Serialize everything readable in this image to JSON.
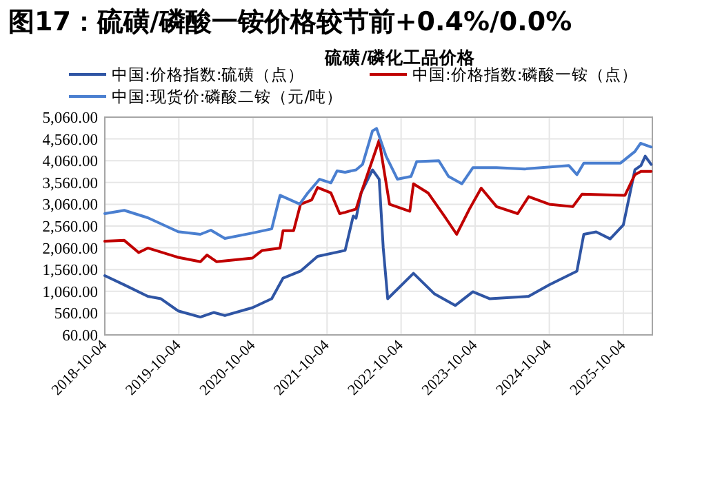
{
  "chart_data": {
    "type": "line",
    "title": "**图17：硫磺/磷酸一铵价格较节前+0.4%/0.0%**",
    "subtitle": "**硫磺/磷化工品价格**",
    "xlim": [
      "2018-10-04",
      "2026-02-24"
    ],
    "xticks": [
      "2018-10-04",
      "2019-10-04",
      "2020-10-04",
      "2021-10-04",
      "2022-10-04",
      "2023-10-04",
      "2024-10-04",
      "2025-10-04"
    ],
    "ylim": [
      60,
      5060
    ],
    "yticks": [
      {
        "value": 60,
        "label": "60.00"
      },
      {
        "value": 560,
        "label": "560.00"
      },
      {
        "value": 1060,
        "label": "1,060.00"
      },
      {
        "value": 1560,
        "label": "1,560.00"
      },
      {
        "value": 2060,
        "label": "2,060.00"
      },
      {
        "value": 2560,
        "label": "2,560.00"
      },
      {
        "value": 3060,
        "label": "3,060.00"
      },
      {
        "value": 3560,
        "label": "3,560.00"
      },
      {
        "value": 4060,
        "label": "4,060.00"
      },
      {
        "value": 4560,
        "label": "4,560.00"
      },
      {
        "value": 5060,
        "label": "5,060.00"
      }
    ],
    "grid": true,
    "legend": "top",
    "line_style": "solid",
    "series": [
      {
        "name": "中国:价格指数:硫磺（点）",
        "color": "#2f55a4",
        "x": [
          "2018-10-04",
          "2019-01-08",
          "2019-05-04",
          "2019-07-08",
          "2019-10-01",
          "2020-01-18",
          "2020-03-25",
          "2020-05-18",
          "2020-10-01",
          "2021-01-04",
          "2021-03-01",
          "2021-05-26",
          "2021-08-18",
          "2022-01-01",
          "2022-02-10",
          "2022-02-24",
          "2022-03-21",
          "2022-05-16",
          "2022-06-18",
          "2022-07-08",
          "2022-07-30",
          "2022-12-04",
          "2023-03-18",
          "2023-06-28",
          "2023-09-23",
          "2023-12-16",
          "2024-06-24",
          "2024-10-04",
          "2025-02-17",
          "2025-03-23",
          "2025-05-23",
          "2025-07-31",
          "2025-10-04",
          "2025-11-30",
          "2025-12-30",
          "2026-01-20",
          "2026-02-18"
        ],
        "values": [
          1420,
          1210,
          945,
          890,
          610,
          470,
          575,
          505,
          685,
          890,
          1365,
          1525,
          1865,
          2000,
          2790,
          2740,
          3320,
          3850,
          3635,
          2055,
          890,
          1475,
          1000,
          735,
          1050,
          890,
          945,
          1210,
          1525,
          2370,
          2425,
          2265,
          2585,
          3850,
          3950,
          4165,
          3975
        ]
      },
      {
        "name": "中国:价格指数:磷酸一铵（点）",
        "color": "#c00000",
        "x": [
          "2018-10-04",
          "2019-01-08",
          "2019-03-20",
          "2019-05-04",
          "2019-10-01",
          "2020-01-18",
          "2020-02-20",
          "2020-04-08",
          "2020-10-01",
          "2020-11-18",
          "2021-02-14",
          "2021-03-01",
          "2021-04-22",
          "2021-05-26",
          "2021-07-20",
          "2021-08-18",
          "2021-10-23",
          "2021-12-05",
          "2022-01-01",
          "2022-02-24",
          "2022-03-21",
          "2022-06-18",
          "2022-08-08",
          "2022-11-16",
          "2022-12-04",
          "2023-02-14",
          "2023-05-05",
          "2023-07-05",
          "2023-09-06",
          "2023-11-03",
          "2024-01-18",
          "2024-05-01",
          "2024-06-24",
          "2024-10-04",
          "2025-01-28",
          "2025-03-14",
          "2025-10-12",
          "2025-11-30",
          "2025-12-30",
          "2026-02-18"
        ],
        "values": [
          2210,
          2230,
          1950,
          2055,
          1840,
          1740,
          1895,
          1740,
          1825,
          2000,
          2055,
          2455,
          2455,
          3060,
          3160,
          3445,
          3320,
          2845,
          2875,
          2950,
          3320,
          4530,
          3060,
          2900,
          3530,
          3320,
          2790,
          2370,
          2950,
          3430,
          3005,
          2845,
          3235,
          3060,
          3005,
          3290,
          3265,
          3740,
          3815,
          3815
        ]
      },
      {
        "name": "中国:现货价:磷酸二铵（元/吨）",
        "color": "#4a7fd0",
        "x": [
          "2018-10-04",
          "2019-01-08",
          "2019-05-04",
          "2019-10-01",
          "2020-01-18",
          "2020-03-10",
          "2020-05-18",
          "2020-10-01",
          "2021-01-04",
          "2021-02-14",
          "2021-05-22",
          "2021-07-01",
          "2021-08-28",
          "2021-10-23",
          "2021-11-22",
          "2022-01-01",
          "2022-02-24",
          "2022-03-28",
          "2022-05-16",
          "2022-06-05",
          "2022-07-22",
          "2022-09-16",
          "2022-11-22",
          "2022-12-20",
          "2023-04-08",
          "2023-05-26",
          "2023-07-31",
          "2023-09-23",
          "2024-01-18",
          "2024-06-03",
          "2025-01-08",
          "2025-02-17",
          "2025-03-23",
          "2025-09-20",
          "2025-11-30",
          "2025-12-28",
          "2026-02-18"
        ],
        "values": [
          2845,
          2920,
          2750,
          2430,
          2370,
          2465,
          2275,
          2400,
          2495,
          3265,
          3065,
          3320,
          3635,
          3550,
          3825,
          3795,
          3850,
          3975,
          4745,
          4800,
          4165,
          3635,
          3700,
          4040,
          4060,
          3700,
          3530,
          3900,
          3900,
          3870,
          3950,
          3740,
          4005,
          4005,
          4270,
          4460,
          4375
        ]
      }
    ]
  }
}
